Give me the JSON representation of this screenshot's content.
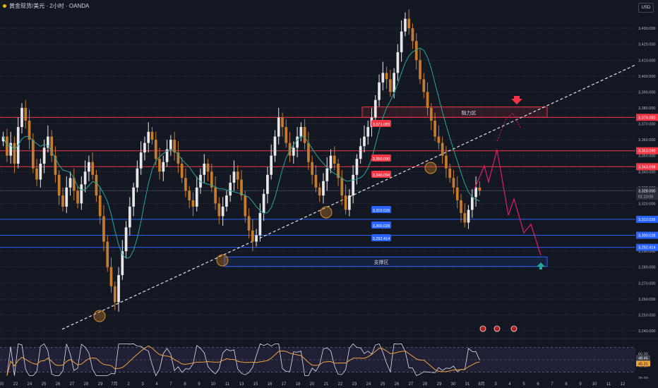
{
  "header": {
    "symbol": "黄金现货/美元 · 2小时 · OANDA"
  },
  "currency_button": "USD",
  "chart_data": {
    "type": "candlestick",
    "symbol": "黄金现货/美元",
    "interval": "2小时",
    "source": "OANDA",
    "ylim": [
      3236,
      3446
    ],
    "y_ticks": [
      3240,
      3250,
      3260,
      3270,
      3280,
      3290,
      3300,
      3310,
      3320,
      3330,
      3340,
      3350,
      3360,
      3370,
      3380,
      3390,
      3400,
      3410,
      3420,
      3430
    ],
    "y_tick_labels": [
      "3,240.000",
      "3,250.000",
      "3,260.000",
      "3,270.000",
      "3,280.000",
      "3,290.000",
      "3,300.000",
      "3,310.000",
      "3,320.000",
      "3,330.000",
      "3,340.000",
      "3,350.000",
      "3,360.000",
      "3,370.000",
      "3,380.000",
      "3,390.000",
      "3,400.000",
      "3,410.000",
      "3,420.000",
      "3,430.000"
    ],
    "x_labels": [
      "20",
      "22",
      "24",
      "25",
      "26",
      "27",
      "28",
      "29",
      "7月",
      "2",
      "3",
      "4",
      "7",
      "8",
      "9",
      "10",
      "11",
      "13",
      "15",
      "16",
      "17",
      "18",
      "20",
      "21",
      "22",
      "23",
      "24",
      "25",
      "26",
      "27",
      "28",
      "29",
      "30",
      "31",
      "8月",
      "3",
      "4",
      "5",
      "6",
      "7",
      "8",
      "9",
      "10",
      "11",
      "12"
    ],
    "resistance_lines": [
      3374.083,
      3353.09,
      3343.098
    ],
    "support_lines": [
      3310.026,
      3300.028,
      3292.414
    ],
    "price_tags_center": [
      "3,371.083",
      "3,350.090",
      "3,340.094",
      "3,310.026",
      "3,300.028",
      "3,292.414"
    ],
    "price_tags_axis": [
      "3,374.083",
      "3,353.090",
      "3,343.098",
      "3,310.026",
      "3,300.028",
      "3,292.414"
    ],
    "last_price": "3,328.000",
    "countdown": "01:23:06",
    "resistance_zone_label": "阻力区",
    "support_zone_label": "支撑区",
    "trendline": {
      "from": {
        "x_label": "24",
        "price": 3240
      },
      "to": {
        "x_label": "12",
        "price": 3405
      }
    },
    "closes": [
      3362,
      3350,
      3358,
      3345,
      3368,
      3380,
      3372,
      3360,
      3342,
      3335,
      3345,
      3355,
      3362,
      3350,
      3338,
      3325,
      3318,
      3330,
      3336,
      3328,
      3320,
      3332,
      3340,
      3346,
      3338,
      3325,
      3312,
      3296,
      3280,
      3268,
      3258,
      3275,
      3290,
      3305,
      3318,
      3330,
      3342,
      3352,
      3358,
      3365,
      3360,
      3348,
      3340,
      3346,
      3354,
      3360,
      3352,
      3345,
      3336,
      3328,
      3322,
      3318,
      3330,
      3338,
      3345,
      3340,
      3330,
      3320,
      3312,
      3318,
      3325,
      3333,
      3340,
      3335,
      3325,
      3312,
      3303,
      3296,
      3300,
      3314,
      3326,
      3338,
      3350,
      3362,
      3374,
      3368,
      3358,
      3350,
      3355,
      3362,
      3368,
      3358,
      3346,
      3338,
      3330,
      3325,
      3334,
      3342,
      3350,
      3345,
      3336,
      3325,
      3316,
      3325,
      3338,
      3348,
      3356,
      3362,
      3368,
      3374,
      3385,
      3396,
      3402,
      3398,
      3390,
      3402,
      3415,
      3428,
      3436,
      3430,
      3422,
      3410,
      3398,
      3390,
      3380,
      3372,
      3362,
      3358,
      3350,
      3342,
      3336,
      3330,
      3322,
      3314,
      3308,
      3316,
      3324,
      3330,
      3328
    ],
    "rsi": {
      "ylim": [
        20,
        80
      ],
      "ticks": [
        60,
        40,
        20
      ],
      "tick_labels": [
        "60.00",
        "40.00",
        "20.00"
      ],
      "value": "48.45",
      "ma_value": "45.31"
    }
  }
}
